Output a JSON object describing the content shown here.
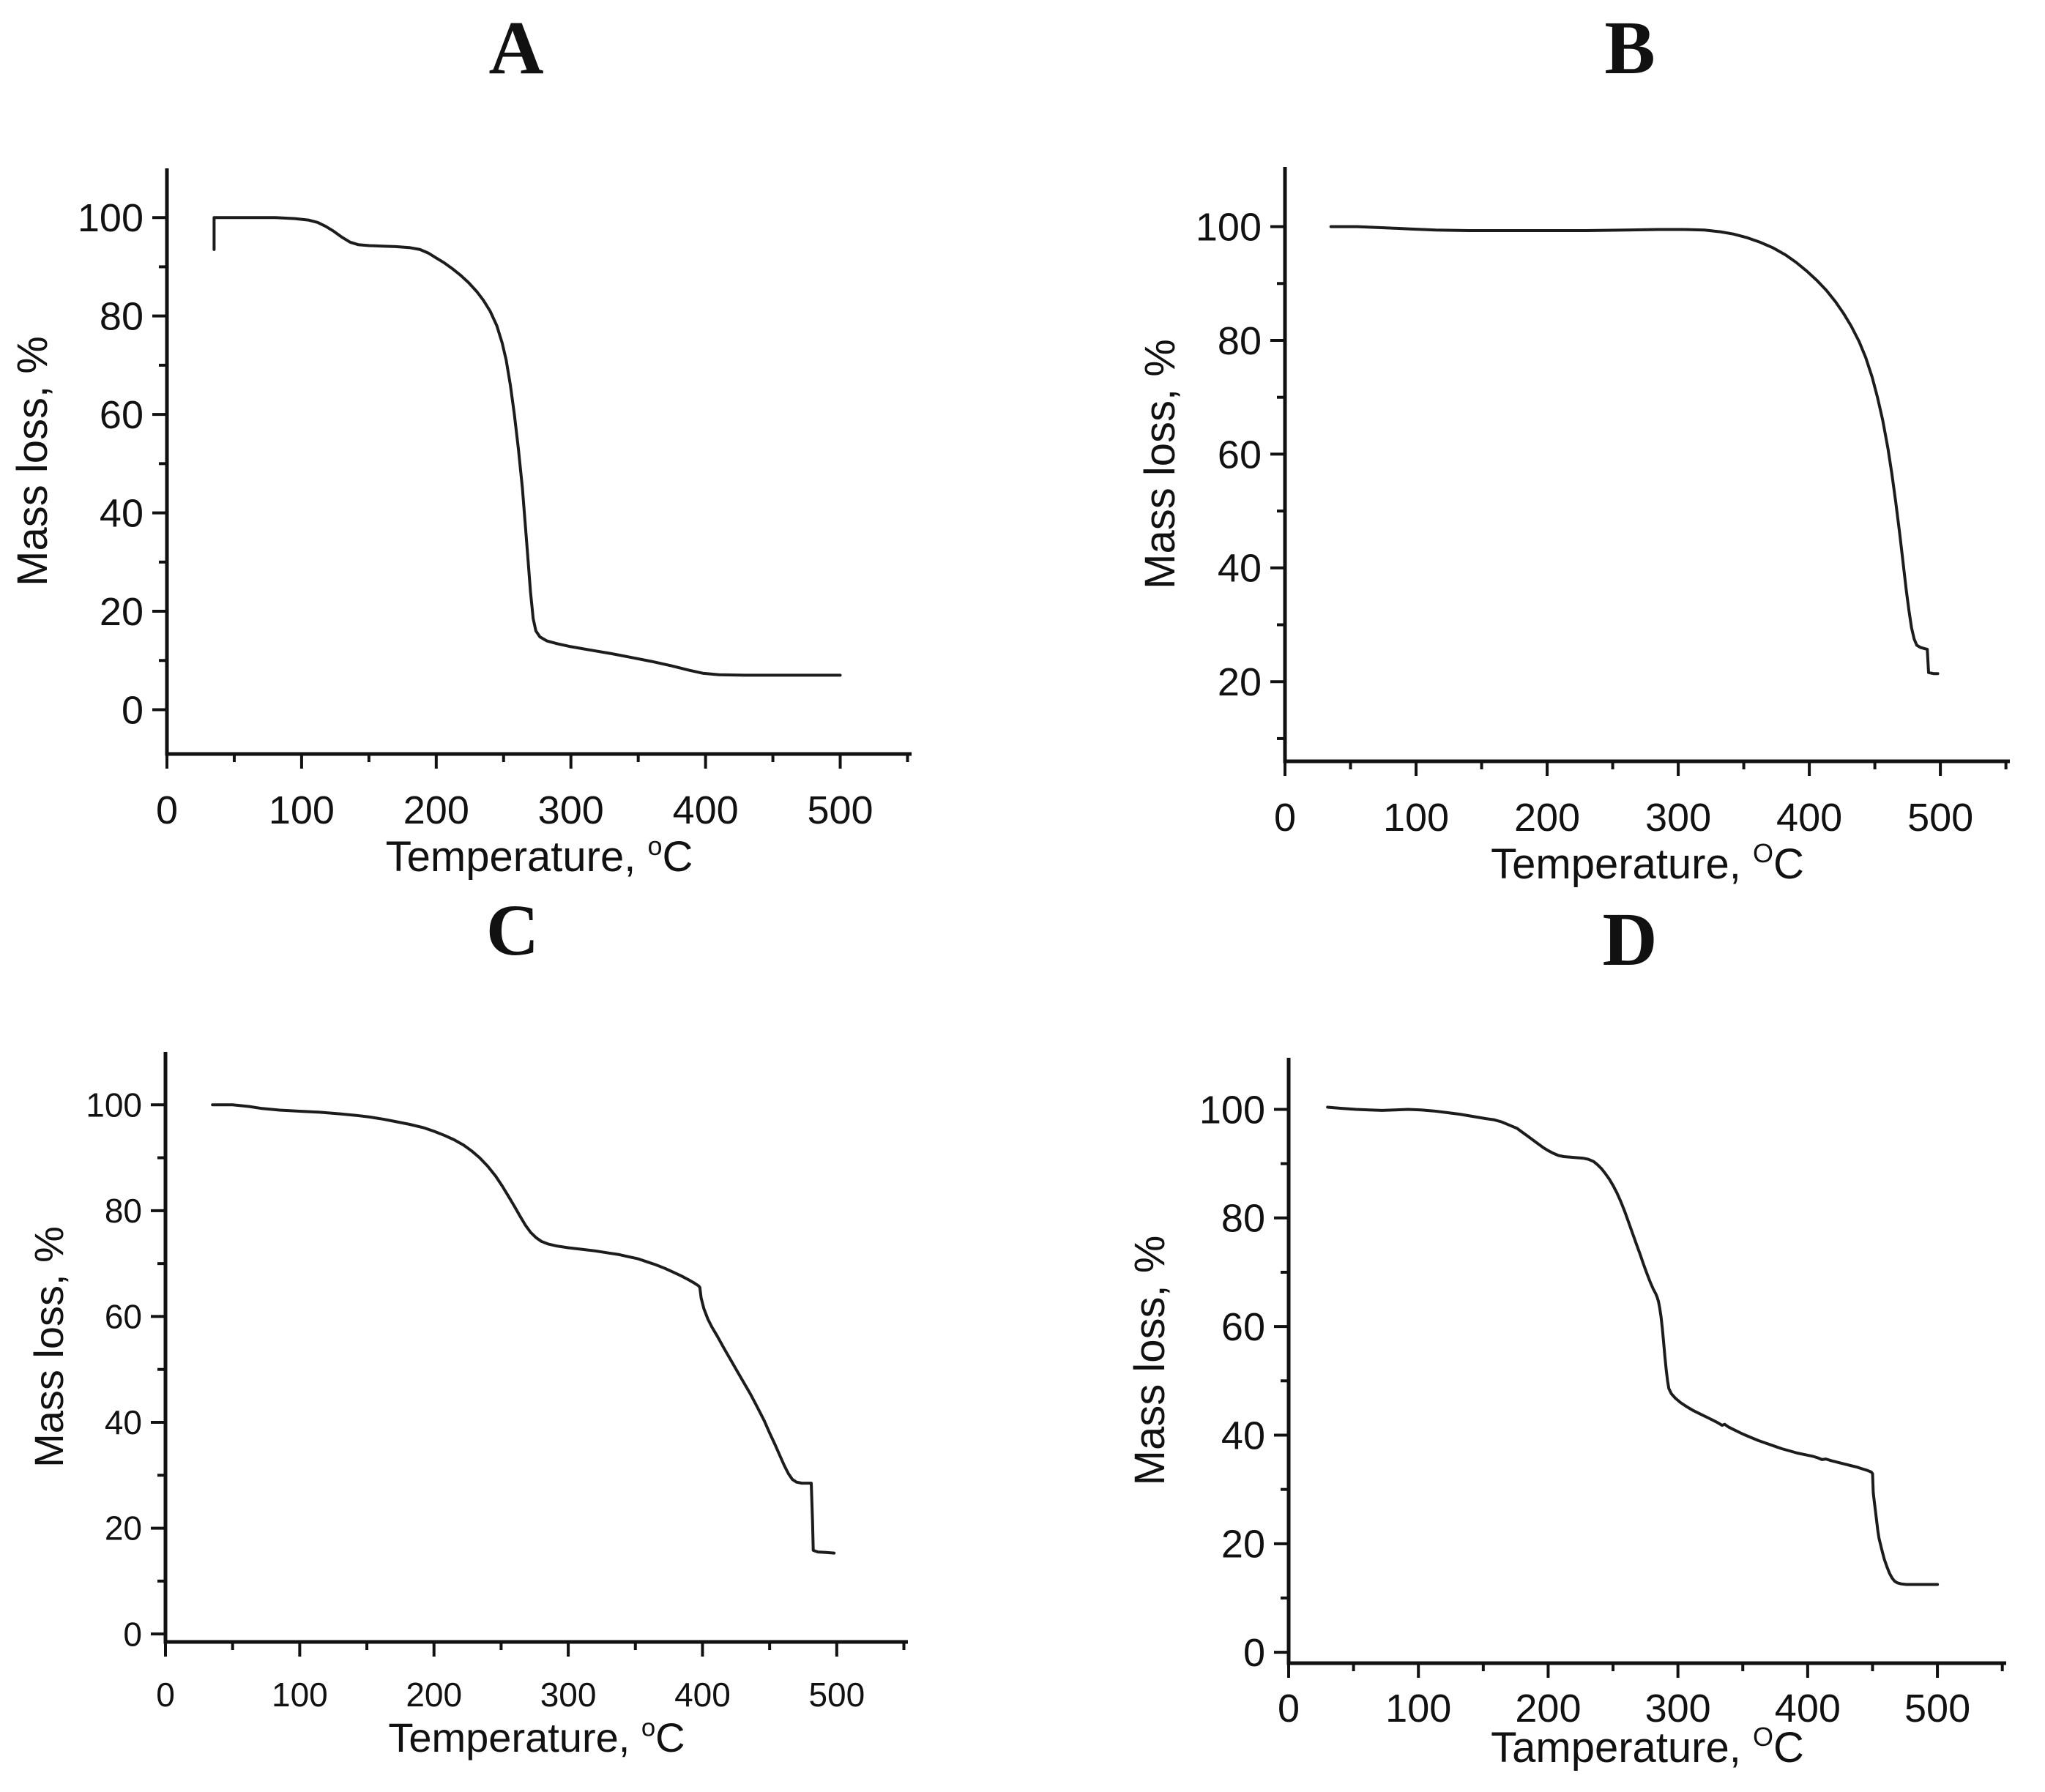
{
  "figure": {
    "background": "#ffffff",
    "axis_color": "#111111",
    "description": "Four TGA thermogravimetric curves, panels A-D, mass loss percent versus temperature"
  },
  "chart_data": [
    {
      "id": "A",
      "type": "line",
      "title": "A",
      "xlabel": {
        "prefix": "Temperature, ",
        "sup": "o",
        "suffix": "C"
      },
      "ylabel": "Mass loss, %",
      "xlim": [
        0,
        553
      ],
      "ylim": [
        -9,
        110
      ],
      "xticks": [
        0,
        100,
        200,
        300,
        400,
        500
      ],
      "xminor": [
        50,
        150,
        250,
        350,
        450,
        550
      ],
      "yticks": [
        0,
        20,
        40,
        60,
        80,
        100
      ],
      "yminor": [
        10,
        30,
        50,
        70,
        90
      ],
      "grid": false,
      "legend": null,
      "line_color": "#1c1c1c",
      "points": [
        [
          35,
          93.5
        ],
        [
          35,
          100
        ],
        [
          45,
          100
        ],
        [
          60,
          100
        ],
        [
          80,
          100
        ],
        [
          95,
          99.8
        ],
        [
          105,
          99.5
        ],
        [
          112,
          99
        ],
        [
          118,
          98.2
        ],
        [
          124,
          97.2
        ],
        [
          130,
          96
        ],
        [
          136,
          95
        ],
        [
          142,
          94.5
        ],
        [
          150,
          94.3
        ],
        [
          160,
          94.2
        ],
        [
          170,
          94.1
        ],
        [
          180,
          93.9
        ],
        [
          188,
          93.5
        ],
        [
          194,
          92.8
        ],
        [
          200,
          91.8
        ],
        [
          206,
          90.8
        ],
        [
          212,
          89.6
        ],
        [
          218,
          88.3
        ],
        [
          224,
          86.8
        ],
        [
          230,
          85
        ],
        [
          235,
          83.2
        ],
        [
          240,
          81
        ],
        [
          245,
          78
        ],
        [
          249,
          74.5
        ],
        [
          252,
          71
        ],
        [
          255,
          66
        ],
        [
          258,
          60
        ],
        [
          261,
          53
        ],
        [
          264,
          45
        ],
        [
          266,
          38
        ],
        [
          268,
          31
        ],
        [
          270,
          24
        ],
        [
          272,
          18.5
        ],
        [
          274,
          16
        ],
        [
          277,
          14.8
        ],
        [
          282,
          14
        ],
        [
          290,
          13.4
        ],
        [
          300,
          12.8
        ],
        [
          315,
          12.1
        ],
        [
          330,
          11.4
        ],
        [
          345,
          10.6
        ],
        [
          360,
          9.8
        ],
        [
          375,
          8.9
        ],
        [
          388,
          8
        ],
        [
          398,
          7.4
        ],
        [
          410,
          7.1
        ],
        [
          430,
          7
        ],
        [
          460,
          7
        ],
        [
          500,
          7
        ]
      ]
    },
    {
      "id": "B",
      "type": "line",
      "title": "B",
      "xlabel": {
        "prefix": "Temperature, ",
        "sup": "O",
        "suffix": "C"
      },
      "ylabel": "Mass loss, %",
      "xlim": [
        0,
        553
      ],
      "ylim": [
        6,
        110.5
      ],
      "xticks": [
        0,
        100,
        200,
        300,
        400,
        500
      ],
      "xminor": [
        50,
        150,
        250,
        350,
        450,
        550
      ],
      "yticks": [
        20,
        40,
        60,
        80,
        100
      ],
      "yminor": [
        10,
        30,
        50,
        70,
        90
      ],
      "grid": false,
      "legend": null,
      "line_color": "#1c1c1c",
      "points": [
        [
          35,
          100
        ],
        [
          55,
          100
        ],
        [
          75,
          99.8
        ],
        [
          95,
          99.6
        ],
        [
          115,
          99.4
        ],
        [
          140,
          99.3
        ],
        [
          170,
          99.3
        ],
        [
          200,
          99.3
        ],
        [
          230,
          99.3
        ],
        [
          260,
          99.4
        ],
        [
          285,
          99.5
        ],
        [
          305,
          99.5
        ],
        [
          320,
          99.4
        ],
        [
          332,
          99.1
        ],
        [
          342,
          98.7
        ],
        [
          352,
          98.1
        ],
        [
          362,
          97.3
        ],
        [
          372,
          96.3
        ],
        [
          382,
          95
        ],
        [
          390,
          93.7
        ],
        [
          398,
          92.2
        ],
        [
          406,
          90.5
        ],
        [
          413,
          88.8
        ],
        [
          420,
          86.8
        ],
        [
          426,
          84.8
        ],
        [
          432,
          82.5
        ],
        [
          438,
          79.8
        ],
        [
          443,
          77
        ],
        [
          448,
          73.5
        ],
        [
          452,
          70
        ],
        [
          456,
          66
        ],
        [
          460,
          61
        ],
        [
          463,
          56.5
        ],
        [
          466,
          51.5
        ],
        [
          469,
          46
        ],
        [
          472,
          40
        ],
        [
          474,
          36
        ],
        [
          476,
          32.5
        ],
        [
          478,
          29.5
        ],
        [
          480,
          27.5
        ],
        [
          482,
          26.4
        ],
        [
          485,
          26
        ],
        [
          488,
          25.8
        ],
        [
          490,
          25.7
        ],
        [
          491,
          21.6
        ],
        [
          495,
          21.4
        ],
        [
          498,
          21.4
        ]
      ]
    },
    {
      "id": "C",
      "type": "line",
      "title": "C",
      "xlabel": {
        "prefix": "Temperature, ",
        "sup": "o",
        "suffix": "C"
      },
      "ylabel": "Mass loss, %",
      "xlim": [
        0,
        553
      ],
      "ylim": [
        -1.5,
        110
      ],
      "xticks": [
        0,
        100,
        200,
        300,
        400,
        500
      ],
      "xminor": [
        50,
        150,
        250,
        350,
        450,
        550
      ],
      "yticks": [
        0,
        20,
        40,
        60,
        80,
        100
      ],
      "yminor": [
        10,
        30,
        50,
        70,
        90
      ],
      "grid": false,
      "legend": null,
      "line_color": "#1c1c1c",
      "points": [
        [
          35,
          100
        ],
        [
          50,
          100
        ],
        [
          62,
          99.7
        ],
        [
          72,
          99.3
        ],
        [
          85,
          99
        ],
        [
          100,
          98.8
        ],
        [
          115,
          98.6
        ],
        [
          130,
          98.3
        ],
        [
          142,
          98
        ],
        [
          152,
          97.7
        ],
        [
          162,
          97.3
        ],
        [
          172,
          96.8
        ],
        [
          182,
          96.3
        ],
        [
          192,
          95.7
        ],
        [
          200,
          95
        ],
        [
          208,
          94.2
        ],
        [
          215,
          93.4
        ],
        [
          222,
          92.4
        ],
        [
          228,
          91.3
        ],
        [
          234,
          90
        ],
        [
          240,
          88.4
        ],
        [
          246,
          86.5
        ],
        [
          251,
          84.6
        ],
        [
          256,
          82.5
        ],
        [
          260,
          80.8
        ],
        [
          264,
          79
        ],
        [
          268,
          77.3
        ],
        [
          272,
          75.9
        ],
        [
          276,
          74.9
        ],
        [
          280,
          74.2
        ],
        [
          285,
          73.7
        ],
        [
          292,
          73.3
        ],
        [
          300,
          73
        ],
        [
          310,
          72.7
        ],
        [
          320,
          72.4
        ],
        [
          330,
          72
        ],
        [
          338,
          71.7
        ],
        [
          345,
          71.3
        ],
        [
          352,
          70.9
        ],
        [
          358,
          70.4
        ],
        [
          365,
          69.8
        ],
        [
          372,
          69.1
        ],
        [
          378,
          68.4
        ],
        [
          384,
          67.7
        ],
        [
          390,
          66.9
        ],
        [
          394,
          66.3
        ],
        [
          397,
          65.8
        ],
        [
          398,
          65.5
        ],
        [
          399,
          63.5
        ],
        [
          401,
          61.5
        ],
        [
          404,
          59.5
        ],
        [
          407,
          58
        ],
        [
          411,
          56.3
        ],
        [
          416,
          54
        ],
        [
          421,
          51.8
        ],
        [
          426,
          49.6
        ],
        [
          431,
          47.4
        ],
        [
          436,
          45.2
        ],
        [
          441,
          42.8
        ],
        [
          446,
          40.3
        ],
        [
          450,
          38
        ],
        [
          454,
          35.8
        ],
        [
          458,
          33.5
        ],
        [
          461,
          31.8
        ],
        [
          464,
          30.3
        ],
        [
          467,
          29.2
        ],
        [
          470,
          28.7
        ],
        [
          474,
          28.5
        ],
        [
          478,
          28.5
        ],
        [
          481,
          28.5
        ],
        [
          482,
          21
        ],
        [
          482.5,
          15.8
        ],
        [
          486,
          15.5
        ],
        [
          492,
          15.4
        ],
        [
          498,
          15.3
        ]
      ]
    },
    {
      "id": "D",
      "type": "line",
      "title": "D",
      "xlabel": {
        "prefix": "Tamperature, ",
        "sup": "O",
        "suffix": "C"
      },
      "ylabel": "Mass loss, %",
      "xlim": [
        0,
        553
      ],
      "ylim": [
        -2,
        109.5
      ],
      "xticks": [
        0,
        100,
        200,
        300,
        400,
        500
      ],
      "xminor": [
        50,
        150,
        250,
        350,
        450,
        550
      ],
      "yticks": [
        0,
        20,
        40,
        60,
        80,
        100
      ],
      "yminor": [
        10,
        30,
        50,
        70,
        90
      ],
      "grid": false,
      "legend": null,
      "line_color": "#1c1c1c",
      "points": [
        [
          30,
          100.4
        ],
        [
          40,
          100.2
        ],
        [
          52,
          100
        ],
        [
          62,
          99.9
        ],
        [
          72,
          99.8
        ],
        [
          82,
          99.9
        ],
        [
          92,
          100
        ],
        [
          102,
          99.9
        ],
        [
          112,
          99.7
        ],
        [
          122,
          99.4
        ],
        [
          132,
          99.1
        ],
        [
          142,
          98.7
        ],
        [
          152,
          98.3
        ],
        [
          158,
          98.1
        ],
        [
          164,
          97.7
        ],
        [
          169,
          97.2
        ],
        [
          173,
          96.8
        ],
        [
          176,
          96.5
        ],
        [
          180,
          95.8
        ],
        [
          184,
          95.1
        ],
        [
          188,
          94.4
        ],
        [
          192,
          93.7
        ],
        [
          196,
          93
        ],
        [
          200,
          92.4
        ],
        [
          204,
          91.9
        ],
        [
          208,
          91.5
        ],
        [
          212,
          91.3
        ],
        [
          217,
          91.2
        ],
        [
          222,
          91.1
        ],
        [
          227,
          91
        ],
        [
          231,
          90.8
        ],
        [
          235,
          90.4
        ],
        [
          238,
          89.8
        ],
        [
          241,
          89.1
        ],
        [
          244,
          88.2
        ],
        [
          247,
          87.2
        ],
        [
          250,
          86
        ],
        [
          253,
          84.6
        ],
        [
          256,
          83
        ],
        [
          259,
          81.2
        ],
        [
          262,
          79.2
        ],
        [
          265,
          77.2
        ],
        [
          268,
          75.2
        ],
        [
          271,
          73.2
        ],
        [
          273,
          71.8
        ],
        [
          275,
          70.5
        ],
        [
          277,
          69.2
        ],
        [
          279,
          68
        ],
        [
          281,
          66.9
        ],
        [
          283,
          66
        ],
        [
          284,
          65.4
        ],
        [
          285,
          64.6
        ],
        [
          286,
          63.4
        ],
        [
          287,
          61.8
        ],
        [
          288,
          59.6
        ],
        [
          289,
          57
        ],
        [
          290,
          54.4
        ],
        [
          291,
          52
        ],
        [
          292,
          50
        ],
        [
          293,
          48.6
        ],
        [
          295,
          47.6
        ],
        [
          298,
          46.8
        ],
        [
          302,
          46
        ],
        [
          307,
          45.2
        ],
        [
          312,
          44.5
        ],
        [
          318,
          43.8
        ],
        [
          324,
          43.1
        ],
        [
          329,
          42.5
        ],
        [
          332,
          42.1
        ],
        [
          334,
          41.8
        ],
        [
          336,
          42
        ],
        [
          339,
          41.5
        ],
        [
          344,
          40.9
        ],
        [
          350,
          40.2
        ],
        [
          356,
          39.6
        ],
        [
          362,
          39
        ],
        [
          368,
          38.5
        ],
        [
          374,
          38
        ],
        [
          380,
          37.5
        ],
        [
          386,
          37.1
        ],
        [
          392,
          36.7
        ],
        [
          398,
          36.4
        ],
        [
          404,
          36.1
        ],
        [
          408,
          35.8
        ],
        [
          411,
          35.5
        ],
        [
          414,
          35.6
        ],
        [
          418,
          35.3
        ],
        [
          423,
          35
        ],
        [
          428,
          34.7
        ],
        [
          433,
          34.4
        ],
        [
          438,
          34.1
        ],
        [
          442,
          33.8
        ],
        [
          446,
          33.5
        ],
        [
          449,
          33.2
        ],
        [
          450,
          32.9
        ],
        [
          450.5,
          29.5
        ],
        [
          451,
          28.5
        ],
        [
          452,
          26.5
        ],
        [
          453,
          24.5
        ],
        [
          454,
          22.5
        ],
        [
          455,
          21
        ],
        [
          457,
          19
        ],
        [
          459,
          17.2
        ],
        [
          461,
          15.8
        ],
        [
          463,
          14.6
        ],
        [
          465,
          13.7
        ],
        [
          467,
          13.1
        ],
        [
          469,
          12.8
        ],
        [
          472,
          12.6
        ],
        [
          476,
          12.5
        ],
        [
          484,
          12.5
        ],
        [
          492,
          12.5
        ],
        [
          500,
          12.5
        ]
      ]
    }
  ]
}
